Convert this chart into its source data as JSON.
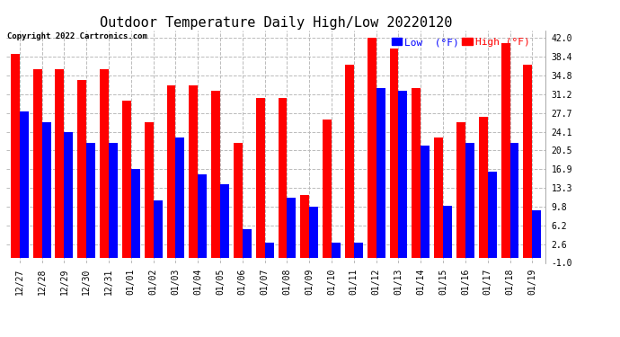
{
  "title": "Outdoor Temperature Daily High/Low 20220120",
  "copyright": "Copyright 2022 Cartronics.com",
  "dates": [
    "12/27",
    "12/28",
    "12/29",
    "12/30",
    "12/31",
    "01/01",
    "01/02",
    "01/03",
    "01/04",
    "01/05",
    "01/06",
    "01/07",
    "01/08",
    "01/09",
    "01/10",
    "01/11",
    "01/12",
    "01/13",
    "01/14",
    "01/15",
    "01/16",
    "01/17",
    "01/18",
    "01/19"
  ],
  "highs": [
    39.0,
    36.0,
    36.0,
    34.0,
    36.0,
    30.0,
    26.0,
    33.0,
    33.0,
    32.0,
    22.0,
    30.5,
    30.5,
    12.0,
    26.5,
    37.0,
    42.0,
    40.0,
    32.5,
    23.0,
    26.0,
    27.0,
    41.0,
    37.0
  ],
  "lows": [
    28.0,
    26.0,
    24.0,
    22.0,
    22.0,
    17.0,
    11.0,
    23.0,
    16.0,
    14.0,
    5.5,
    2.8,
    11.5,
    9.8,
    2.8,
    2.8,
    32.5,
    32.0,
    21.5,
    10.0,
    22.0,
    16.5,
    22.0,
    9.0
  ],
  "ylim": [
    -1.0,
    43.5
  ],
  "yticks": [
    -1.0,
    2.6,
    6.2,
    9.8,
    13.3,
    16.9,
    20.5,
    24.1,
    27.7,
    31.2,
    34.8,
    38.4,
    42.0
  ],
  "bar_width": 0.4,
  "high_color": "#ff0000",
  "low_color": "#0000ff",
  "background_color": "#ffffff",
  "grid_color": "#bbbbbb",
  "title_fontsize": 11,
  "tick_fontsize": 7,
  "label_fontsize": 8,
  "figwidth": 6.9,
  "figheight": 3.75,
  "dpi": 100
}
